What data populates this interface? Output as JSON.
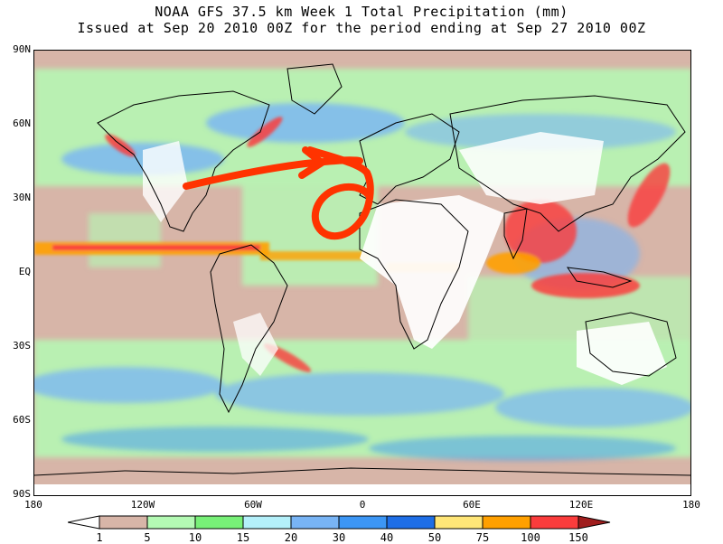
{
  "title": "NOAA GFS 37.5 km Week 1 Total Precipitation (mm)",
  "subtitle": "Issued at Sep 20 2010 00Z for the period ending at Sep 27 2010 00Z",
  "lat_labels": [
    "90N",
    "60N",
    "30N",
    "EQ",
    "30S",
    "60S",
    "90S"
  ],
  "lon_labels": [
    "180",
    "120W",
    "60W",
    "0",
    "60E",
    "120E",
    "180"
  ],
  "colorbar": {
    "labels": [
      "1",
      "5",
      "10",
      "15",
      "20",
      "30",
      "40",
      "50",
      "75",
      "100",
      "150"
    ],
    "colors": [
      "#ffffff",
      "#d7b5a8",
      "#b4fab4",
      "#78f078",
      "#b4f0fa",
      "#78b4f5",
      "#3c96f5",
      "#1e6ee6",
      "#ffe678",
      "#ffa000",
      "#fa3c3c",
      "#a01e1e"
    ]
  },
  "palette": {
    "land_dry": "#ffffff",
    "ocean_light": "#d7b5a8",
    "annotation_arrow": "#ff3300"
  }
}
